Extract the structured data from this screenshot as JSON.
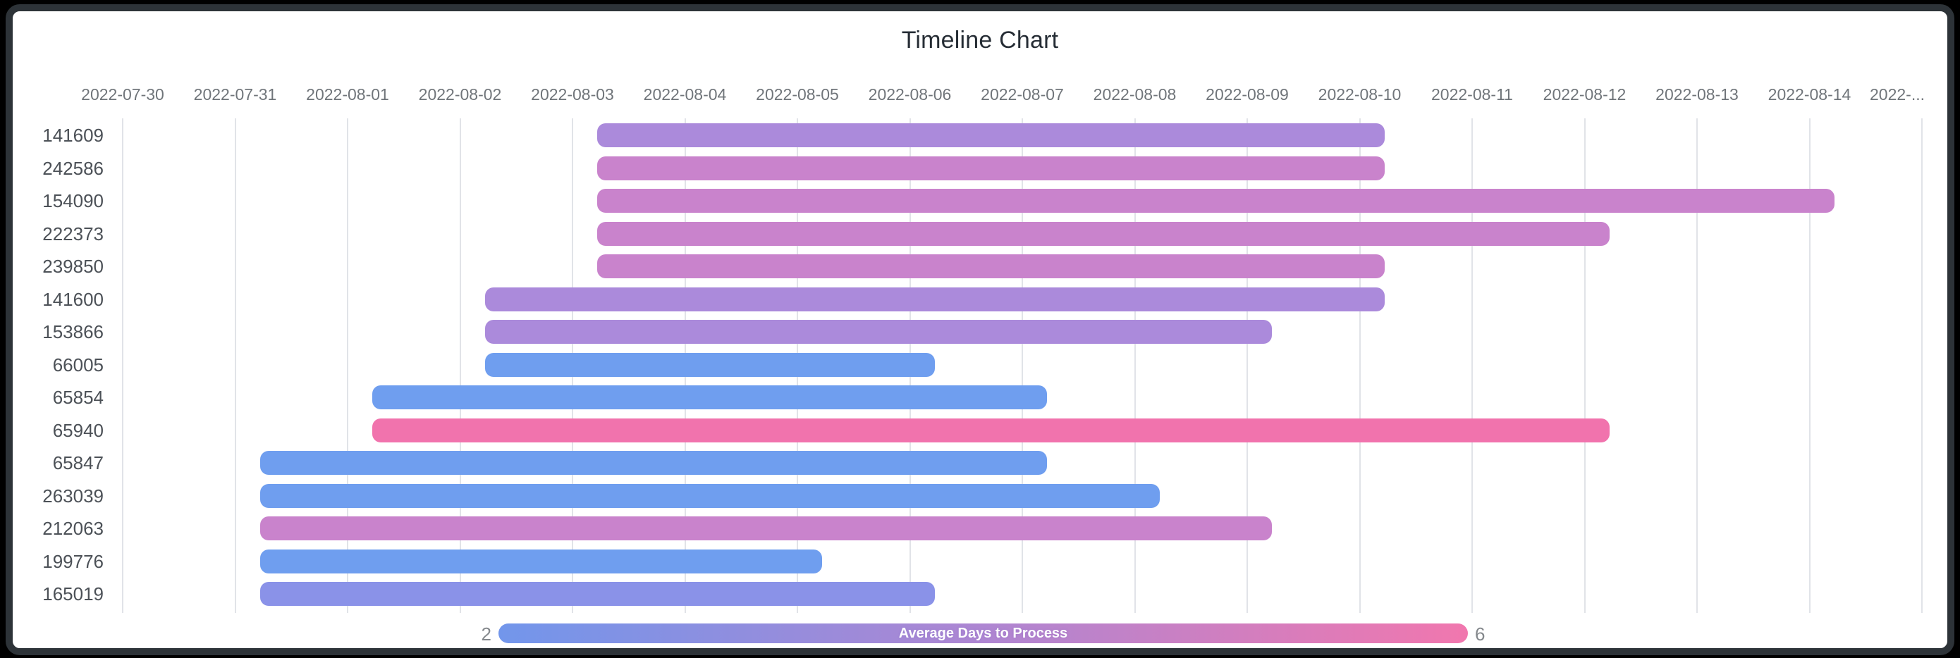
{
  "window": {
    "background_color": "#000000",
    "card_background": "#ffffff",
    "card_border_color": "#2d3338"
  },
  "chart_data": {
    "type": "timeline",
    "title": "Timeline Chart",
    "x_axis": {
      "position": "top",
      "start_date": "2022-07-30",
      "end_date": "2022-08-15",
      "tick_labels": [
        "2022-07-30",
        "2022-07-31",
        "2022-08-01",
        "2022-08-02",
        "2022-08-03",
        "2022-08-04",
        "2022-08-05",
        "2022-08-06",
        "2022-08-07",
        "2022-08-08",
        "2022-08-09",
        "2022-08-10",
        "2022-08-11",
        "2022-08-12",
        "2022-08-13",
        "2022-08-14",
        "2022-..."
      ]
    },
    "rows": [
      {
        "label": "141609",
        "start": "2022-08-03",
        "end": "2022-08-10",
        "color": "#AB8ADB"
      },
      {
        "label": "242586",
        "start": "2022-08-03",
        "end": "2022-08-10",
        "color": "#C983CC"
      },
      {
        "label": "154090",
        "start": "2022-08-03",
        "end": "2022-08-14",
        "color": "#C983CC"
      },
      {
        "label": "222373",
        "start": "2022-08-03",
        "end": "2022-08-12",
        "color": "#C983CC"
      },
      {
        "label": "239850",
        "start": "2022-08-03",
        "end": "2022-08-10",
        "color": "#C983CC"
      },
      {
        "label": "141600",
        "start": "2022-08-02",
        "end": "2022-08-10",
        "color": "#AB8ADB"
      },
      {
        "label": "153866",
        "start": "2022-08-02",
        "end": "2022-08-09",
        "color": "#AB8ADB"
      },
      {
        "label": "66005",
        "start": "2022-08-02",
        "end": "2022-08-06",
        "color": "#6F9EEF"
      },
      {
        "label": "65854",
        "start": "2022-08-01",
        "end": "2022-08-07",
        "color": "#6F9EEF"
      },
      {
        "label": "65940",
        "start": "2022-08-01",
        "end": "2022-08-12",
        "color": "#F173AD"
      },
      {
        "label": "65847",
        "start": "2022-07-31",
        "end": "2022-08-07",
        "color": "#6F9EEF"
      },
      {
        "label": "263039",
        "start": "2022-07-31",
        "end": "2022-08-08",
        "color": "#6F9EEF"
      },
      {
        "label": "212063",
        "start": "2022-07-31",
        "end": "2022-08-09",
        "color": "#C983CC"
      },
      {
        "label": "199776",
        "start": "2022-07-31",
        "end": "2022-08-05",
        "color": "#6F9EEF"
      },
      {
        "label": "165019",
        "start": "2022-07-31",
        "end": "2022-08-06",
        "color": "#8A92E8"
      }
    ],
    "legend": {
      "title": "Average Days to Process",
      "min_label": "2",
      "max_label": "6",
      "gradient_colors": [
        "#7296EB",
        "#AE86D2",
        "#F177AE"
      ]
    },
    "layout_hints": {
      "grid": true,
      "axis_position": "top",
      "bar_time_offset_fraction_of_day": 0.22,
      "gridline_color": "#e1e3e8",
      "tick_label_color": "#70757a",
      "row_label_color": "#4c5157"
    }
  }
}
